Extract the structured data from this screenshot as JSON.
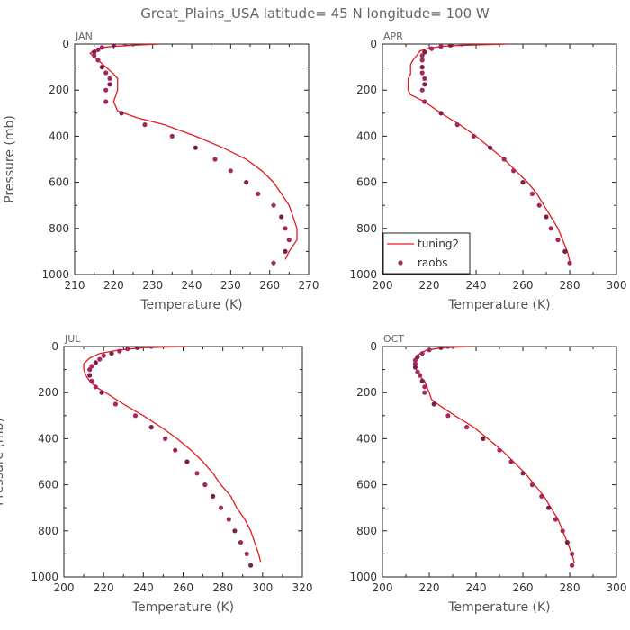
{
  "title": "Great_Plains_USA   latitude= 45 N longitude= 100 W",
  "colors": {
    "model": "#e41a1c",
    "obs": "#a4285c",
    "obs_alt": "#7a1f4a",
    "text": "#555555"
  },
  "chart_data": [
    {
      "type": "line",
      "title": "JAN",
      "xlabel": "Temperature (K)",
      "ylabel": "Pressure (mb)",
      "xlim": [
        210,
        270
      ],
      "ylim": [
        1000,
        0
      ],
      "xticks": [
        210,
        220,
        230,
        240,
        250,
        260,
        270
      ],
      "yticks": [
        0,
        200,
        400,
        600,
        800,
        1000
      ],
      "series": [
        {
          "name": "tuning2",
          "kind": "line",
          "points": [
            [
              232,
              0
            ],
            [
              225,
              5
            ],
            [
              220,
              10
            ],
            [
              217,
              15
            ],
            [
              215,
              25
            ],
            [
              214,
              40
            ],
            [
              215,
              55
            ],
            [
              216,
              70
            ],
            [
              217,
              85
            ],
            [
              218,
              100
            ],
            [
              220,
              130
            ],
            [
              221,
              150
            ],
            [
              221,
              200
            ],
            [
              220,
              250
            ],
            [
              221,
              290
            ],
            [
              226,
              320
            ],
            [
              233,
              350
            ],
            [
              241,
              400
            ],
            [
              248,
              450
            ],
            [
              254,
              500
            ],
            [
              258,
              550
            ],
            [
              261,
              600
            ],
            [
              263,
              650
            ],
            [
              265,
              700
            ],
            [
              266,
              750
            ],
            [
              267,
              800
            ],
            [
              267,
              850
            ],
            [
              265,
              900
            ],
            [
              264,
              935
            ]
          ]
        },
        {
          "name": "raobs",
          "kind": "points",
          "points": [
            [
              223,
              0
            ],
            [
              220,
              5
            ],
            [
              217,
              15
            ],
            [
              216,
              25
            ],
            [
              215,
              35
            ],
            [
              215,
              50
            ],
            [
              216,
              70
            ],
            [
              217,
              100
            ],
            [
              218,
              125
            ],
            [
              219,
              150
            ],
            [
              219,
              175
            ],
            [
              218,
              200
            ],
            [
              218,
              250
            ],
            [
              222,
              300
            ],
            [
              228,
              350
            ],
            [
              235,
              400
            ],
            [
              241,
              450
            ],
            [
              246,
              500
            ],
            [
              250,
              550
            ],
            [
              254,
              600
            ],
            [
              257,
              650
            ],
            [
              261,
              700
            ],
            [
              263,
              750
            ],
            [
              264,
              800
            ],
            [
              265,
              850
            ],
            [
              264,
              900
            ],
            [
              261,
              950
            ]
          ]
        }
      ]
    },
    {
      "type": "line",
      "title": "APR",
      "xlabel": "Temperature (K)",
      "ylabel": "",
      "xlim": [
        200,
        300
      ],
      "ylim": [
        1000,
        0
      ],
      "xticks": [
        200,
        220,
        240,
        260,
        280,
        300
      ],
      "yticks": [
        0,
        200,
        400,
        600,
        800,
        1000
      ],
      "legend": {
        "position": "bottom-left",
        "entries": [
          "tuning2",
          "raobs"
        ]
      },
      "series": [
        {
          "name": "tuning2",
          "kind": "line",
          "points": [
            [
              254,
              0
            ],
            [
              235,
              5
            ],
            [
              225,
              10
            ],
            [
              219,
              20
            ],
            [
              216,
              30
            ],
            [
              215,
              45
            ],
            [
              213,
              70
            ],
            [
              212,
              90
            ],
            [
              212,
              110
            ],
            [
              212,
              130
            ],
            [
              211,
              150
            ],
            [
              211,
              175
            ],
            [
              211,
              200
            ],
            [
              212,
              220
            ],
            [
              218,
              250
            ],
            [
              225,
              300
            ],
            [
              233,
              350
            ],
            [
              240,
              400
            ],
            [
              246,
              450
            ],
            [
              252,
              500
            ],
            [
              257,
              550
            ],
            [
              262,
              600
            ],
            [
              266,
              650
            ],
            [
              269,
              700
            ],
            [
              272,
              750
            ],
            [
              275,
              800
            ],
            [
              277,
              850
            ],
            [
              279,
              900
            ],
            [
              280,
              940
            ]
          ]
        },
        {
          "name": "raobs",
          "kind": "points",
          "points": [
            [
              234,
              0
            ],
            [
              229,
              5
            ],
            [
              225,
              10
            ],
            [
              221,
              20
            ],
            [
              218,
              35
            ],
            [
              217,
              50
            ],
            [
              217,
              70
            ],
            [
              217,
              100
            ],
            [
              217,
              125
            ],
            [
              218,
              150
            ],
            [
              218,
              175
            ],
            [
              217,
              200
            ],
            [
              218,
              250
            ],
            [
              225,
              300
            ],
            [
              232,
              350
            ],
            [
              239,
              400
            ],
            [
              246,
              450
            ],
            [
              252,
              500
            ],
            [
              256,
              550
            ],
            [
              260,
              600
            ],
            [
              264,
              650
            ],
            [
              267,
              700
            ],
            [
              270,
              750
            ],
            [
              272,
              800
            ],
            [
              275,
              850
            ],
            [
              278,
              900
            ],
            [
              280,
              950
            ]
          ]
        }
      ]
    },
    {
      "type": "line",
      "title": "JUL",
      "xlabel": "Temperature (K)",
      "ylabel": "Pressure (mb)",
      "xlim": [
        200,
        320
      ],
      "ylim": [
        1000,
        0
      ],
      "xticks": [
        200,
        220,
        240,
        260,
        280,
        300,
        320
      ],
      "yticks": [
        0,
        200,
        400,
        600,
        800,
        1000
      ],
      "series": [
        {
          "name": "tuning2",
          "kind": "line",
          "points": [
            [
              262,
              0
            ],
            [
              240,
              5
            ],
            [
              228,
              15
            ],
            [
              218,
              30
            ],
            [
              213,
              50
            ],
            [
              210,
              75
            ],
            [
              210,
              100
            ],
            [
              211,
              125
            ],
            [
              213,
              150
            ],
            [
              216,
              175
            ],
            [
              221,
              200
            ],
            [
              230,
              250
            ],
            [
              240,
              300
            ],
            [
              249,
              350
            ],
            [
              257,
              400
            ],
            [
              264,
              450
            ],
            [
              270,
              500
            ],
            [
              275,
              550
            ],
            [
              279,
              600
            ],
            [
              284,
              650
            ],
            [
              287,
              700
            ],
            [
              291,
              750
            ],
            [
              294,
              800
            ],
            [
              296,
              850
            ],
            [
              298,
              900
            ],
            [
              299,
              935
            ]
          ]
        },
        {
          "name": "raobs",
          "kind": "points",
          "points": [
            [
              244,
              0
            ],
            [
              237,
              5
            ],
            [
              232,
              10
            ],
            [
              228,
              20
            ],
            [
              224,
              30
            ],
            [
              220,
              40
            ],
            [
              218,
              55
            ],
            [
              216,
              70
            ],
            [
              214,
              85
            ],
            [
              213,
              100
            ],
            [
              213,
              125
            ],
            [
              214,
              150
            ],
            [
              216,
              175
            ],
            [
              219,
              200
            ],
            [
              226,
              250
            ],
            [
              236,
              300
            ],
            [
              244,
              350
            ],
            [
              251,
              400
            ],
            [
              256,
              450
            ],
            [
              262,
              500
            ],
            [
              267,
              550
            ],
            [
              271,
              600
            ],
            [
              275,
              650
            ],
            [
              279,
              700
            ],
            [
              283,
              750
            ],
            [
              286,
              800
            ],
            [
              289,
              850
            ],
            [
              292,
              900
            ],
            [
              294,
              950
            ]
          ]
        }
      ]
    },
    {
      "type": "line",
      "title": "OCT",
      "xlabel": "Temperature (K)",
      "ylabel": "",
      "xlim": [
        200,
        300
      ],
      "ylim": [
        1000,
        0
      ],
      "xticks": [
        200,
        220,
        240,
        260,
        280,
        300
      ],
      "yticks": [
        0,
        200,
        400,
        600,
        800,
        1000
      ],
      "series": [
        {
          "name": "tuning2",
          "kind": "line",
          "points": [
            [
              238,
              0
            ],
            [
              226,
              5
            ],
            [
              219,
              15
            ],
            [
              216,
              30
            ],
            [
              214,
              50
            ],
            [
              214,
              70
            ],
            [
              214,
              90
            ],
            [
              215,
              110
            ],
            [
              216,
              130
            ],
            [
              218,
              150
            ],
            [
              219,
              175
            ],
            [
              220,
              200
            ],
            [
              221,
              230
            ],
            [
              225,
              260
            ],
            [
              231,
              300
            ],
            [
              239,
              350
            ],
            [
              245,
              400
            ],
            [
              251,
              450
            ],
            [
              256,
              500
            ],
            [
              261,
              550
            ],
            [
              265,
              600
            ],
            [
              269,
              650
            ],
            [
              272,
              700
            ],
            [
              275,
              750
            ],
            [
              277,
              800
            ],
            [
              279,
              850
            ],
            [
              281,
              900
            ],
            [
              282,
              940
            ]
          ]
        },
        {
          "name": "raobs",
          "kind": "points",
          "points": [
            [
              228,
              0
            ],
            [
              225,
              5
            ],
            [
              220,
              15
            ],
            [
              217,
              30
            ],
            [
              215,
              45
            ],
            [
              214,
              60
            ],
            [
              214,
              75
            ],
            [
              214,
              90
            ],
            [
              215,
              110
            ],
            [
              216,
              125
            ],
            [
              217,
              150
            ],
            [
              218,
              175
            ],
            [
              218,
              200
            ],
            [
              222,
              250
            ],
            [
              228,
              300
            ],
            [
              236,
              350
            ],
            [
              243,
              400
            ],
            [
              250,
              450
            ],
            [
              255,
              500
            ],
            [
              260,
              550
            ],
            [
              264,
              600
            ],
            [
              268,
              650
            ],
            [
              271,
              700
            ],
            [
              274,
              750
            ],
            [
              277,
              800
            ],
            [
              279,
              850
            ],
            [
              281,
              900
            ],
            [
              281,
              950
            ]
          ]
        }
      ]
    }
  ]
}
